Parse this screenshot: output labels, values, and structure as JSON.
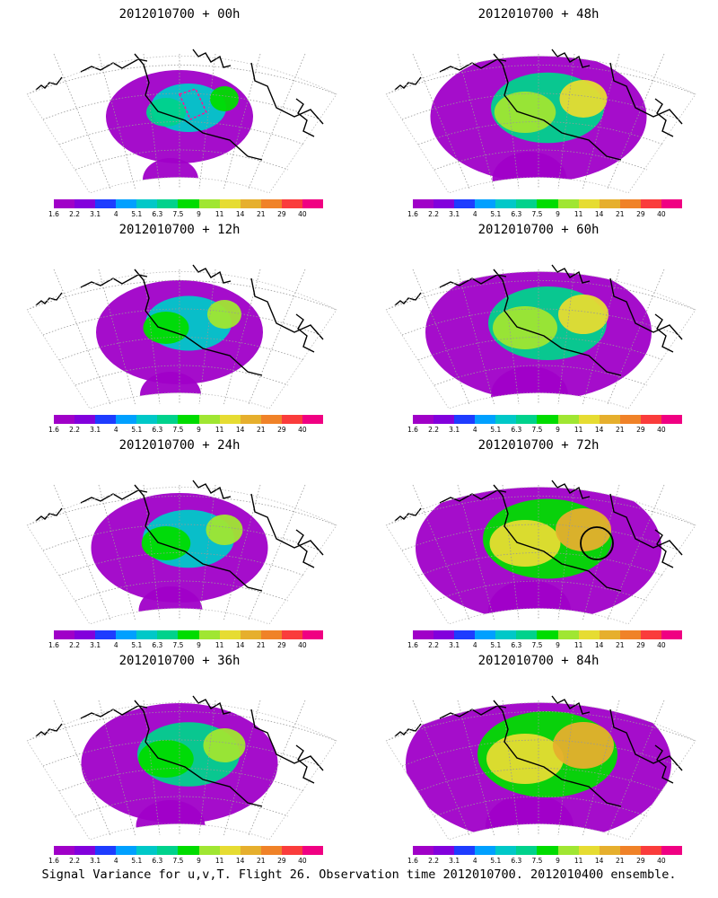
{
  "caption": "Signal Variance for u,v,T. Flight 26. Observation time 2012010700. 2012010400 ensemble.",
  "colorbar": {
    "labels": [
      "1.6",
      "2.2",
      "3.1",
      "4",
      "5.1",
      "6.3",
      "7.5",
      "9",
      "11",
      "14",
      "21",
      "29",
      "40"
    ],
    "colors": [
      "#a000c8",
      "#8200dc",
      "#1e3cff",
      "#00a0ff",
      "#00c8c8",
      "#00d28c",
      "#00dc00",
      "#a0e632",
      "#e6dc32",
      "#e6af2d",
      "#f08228",
      "#fa3c3c",
      "#f00082"
    ]
  },
  "panels": [
    {
      "title": "2012010700 + 00h",
      "level": 0.2,
      "circle": false,
      "dashed_box": true
    },
    {
      "title": "2012010700 + 48h",
      "level": 0.55,
      "circle": false,
      "dashed_box": false
    },
    {
      "title": "2012010700 + 12h",
      "level": 0.3,
      "circle": false,
      "dashed_box": false
    },
    {
      "title": "2012010700 + 60h",
      "level": 0.6,
      "circle": false,
      "dashed_box": false
    },
    {
      "title": "2012010700 + 24h",
      "level": 0.35,
      "circle": false,
      "dashed_box": false
    },
    {
      "title": "2012010700 + 72h",
      "level": 0.7,
      "circle": true,
      "dashed_box": false
    },
    {
      "title": "2012010700 + 36h",
      "level": 0.45,
      "circle": false,
      "dashed_box": false
    },
    {
      "title": "2012010700 + 84h",
      "level": 0.8,
      "circle": false,
      "dashed_box": false
    }
  ]
}
